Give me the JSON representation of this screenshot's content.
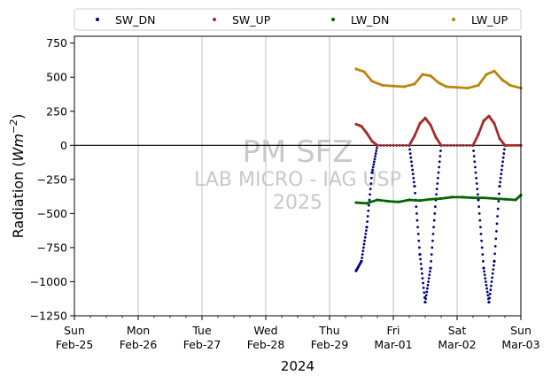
{
  "chart_data": {
    "type": "scatter",
    "ylabel_prefix": "Radiation (",
    "ylabel_unit": "Wm",
    "ylabel_exp": "−2",
    "ylabel_suffix": ")",
    "xlabel": "2024",
    "ylim": [
      -1250,
      800
    ],
    "yticks": [
      750,
      500,
      250,
      0,
      -250,
      -500,
      -750,
      -1000,
      -1250
    ],
    "ytick_labels": [
      "750",
      "500",
      "250",
      "0",
      "−250",
      "−500",
      "−750",
      "−1000",
      "−1250"
    ],
    "xlim_days": [
      0,
      7
    ],
    "x_start": "2024-02-25",
    "x_end": "2024-03-03",
    "xticks": [
      {
        "day": "Sun",
        "date": "Feb-25"
      },
      {
        "day": "Mon",
        "date": "Feb-26"
      },
      {
        "day": "Tue",
        "date": "Feb-27"
      },
      {
        "day": "Wed",
        "date": "Feb-28"
      },
      {
        "day": "Thu",
        "date": "Feb-29"
      },
      {
        "day": "Fri",
        "date": "Mar-01"
      },
      {
        "day": "Sat",
        "date": "Mar-02"
      },
      {
        "day": "Sun",
        "date": "Mar-03"
      }
    ],
    "grid_x": true,
    "zero_line": true,
    "legend_position": "top (above plot)",
    "watermark": [
      "PM SFZ",
      "LAB MICRO - IAG USP",
      "2025"
    ],
    "series": [
      {
        "name": "SW_DN",
        "color": "#00007f",
        "x": [
          "2024-02-29T10:00",
          "2024-02-29T12:00",
          "2024-02-29T14:00",
          "2024-02-29T16:00",
          "2024-02-29T18:00",
          "2024-03-01T06:00",
          "2024-03-01T08:00",
          "2024-03-01T10:00",
          "2024-03-01T12:00",
          "2024-03-01T14:00",
          "2024-03-01T16:00",
          "2024-03-01T18:00",
          "2024-03-02T06:00",
          "2024-03-02T08:00",
          "2024-03-02T10:00",
          "2024-03-02T12:00",
          "2024-03-02T14:00",
          "2024-03-02T16:00",
          "2024-03-02T18:00"
        ],
        "y": [
          -920,
          -850,
          -600,
          -200,
          0,
          0,
          -300,
          -800,
          -1150,
          -900,
          -400,
          0,
          0,
          -400,
          -900,
          -1150,
          -850,
          -300,
          0
        ]
      },
      {
        "name": "SW_UP",
        "color": "#a52a2a",
        "x": [
          "2024-02-29T10:00",
          "2024-02-29T12:00",
          "2024-02-29T14:00",
          "2024-02-29T16:00",
          "2024-02-29T18:00",
          "2024-03-01T06:00",
          "2024-03-01T08:00",
          "2024-03-01T10:00",
          "2024-03-01T12:00",
          "2024-03-01T14:00",
          "2024-03-01T16:00",
          "2024-03-01T18:00",
          "2024-03-02T06:00",
          "2024-03-02T08:00",
          "2024-03-02T10:00",
          "2024-03-02T12:00",
          "2024-03-02T14:00",
          "2024-03-02T16:00",
          "2024-03-02T18:00",
          "2024-03-03T00:00"
        ],
        "y": [
          155,
          140,
          90,
          30,
          0,
          0,
          70,
          160,
          200,
          150,
          60,
          0,
          0,
          80,
          180,
          215,
          160,
          50,
          0,
          0
        ]
      },
      {
        "name": "LW_DN",
        "color": "#006400",
        "x": [
          "2024-02-29T10:00",
          "2024-02-29T14:00",
          "2024-02-29T18:00",
          "2024-02-29T22:00",
          "2024-03-01T02:00",
          "2024-03-01T06:00",
          "2024-03-01T10:00",
          "2024-03-01T14:00",
          "2024-03-01T18:00",
          "2024-03-01T22:00",
          "2024-03-02T02:00",
          "2024-03-02T06:00",
          "2024-03-02T10:00",
          "2024-03-02T14:00",
          "2024-03-02T18:00",
          "2024-03-02T22:00",
          "2024-03-03T00:00"
        ],
        "y": [
          -420,
          -425,
          -400,
          -410,
          -415,
          -400,
          -405,
          -395,
          -390,
          -380,
          -380,
          -385,
          -385,
          -390,
          -395,
          -400,
          -365
        ]
      },
      {
        "name": "LW_UP",
        "color": "#b8860b",
        "x": [
          "2024-02-29T10:00",
          "2024-02-29T13:00",
          "2024-02-29T16:00",
          "2024-02-29T20:00",
          "2024-03-01T00:00",
          "2024-03-01T04:00",
          "2024-03-01T08:00",
          "2024-03-01T11:00",
          "2024-03-01T14:00",
          "2024-03-01T17:00",
          "2024-03-01T20:00",
          "2024-03-02T00:00",
          "2024-03-02T04:00",
          "2024-03-02T08:00",
          "2024-03-02T11:00",
          "2024-03-02T14:00",
          "2024-03-02T17:00",
          "2024-03-02T20:00",
          "2024-03-03T00:00"
        ],
        "y": [
          560,
          540,
          470,
          440,
          435,
          430,
          450,
          520,
          510,
          460,
          430,
          425,
          420,
          440,
          520,
          545,
          480,
          440,
          420
        ]
      }
    ]
  }
}
